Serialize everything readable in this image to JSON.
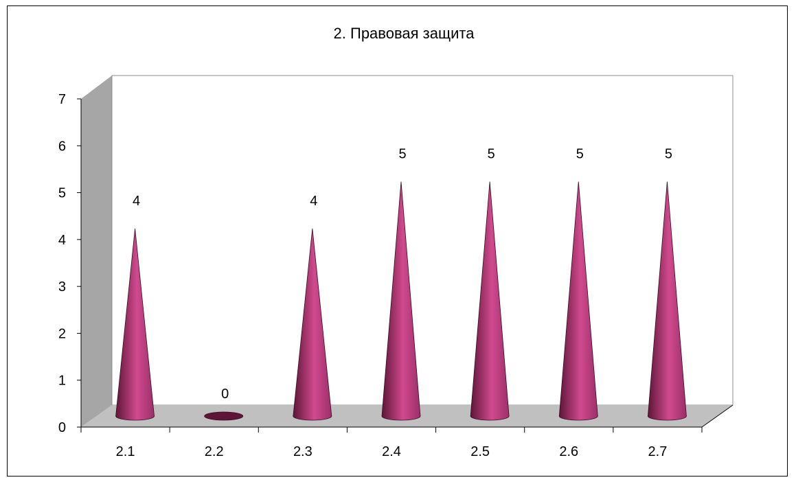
{
  "chart_data": {
    "type": "bar",
    "bar_shape": "cone",
    "view": "3d",
    "title": "2. Правовая защита",
    "xlabel": "",
    "ylabel": "",
    "categories": [
      "2.1",
      "2.2",
      "2.3",
      "2.4",
      "2.5",
      "2.6",
      "2.7"
    ],
    "values": [
      4,
      0,
      4,
      5,
      5,
      5,
      5
    ],
    "data_labels": [
      "4",
      "0",
      "4",
      "5",
      "5",
      "5",
      "5"
    ],
    "ylim": [
      0,
      7
    ],
    "yticks": [
      "0",
      "1",
      "2",
      "3",
      "4",
      "5",
      "6",
      "7"
    ],
    "grid": false,
    "legend": "none",
    "colors": {
      "bar": "#9c2f6a",
      "bar_light": "#d04a8e",
      "bar_dark": "#5e1638",
      "wall": "#a6a6a6",
      "floor": "#c0c0c0"
    }
  }
}
